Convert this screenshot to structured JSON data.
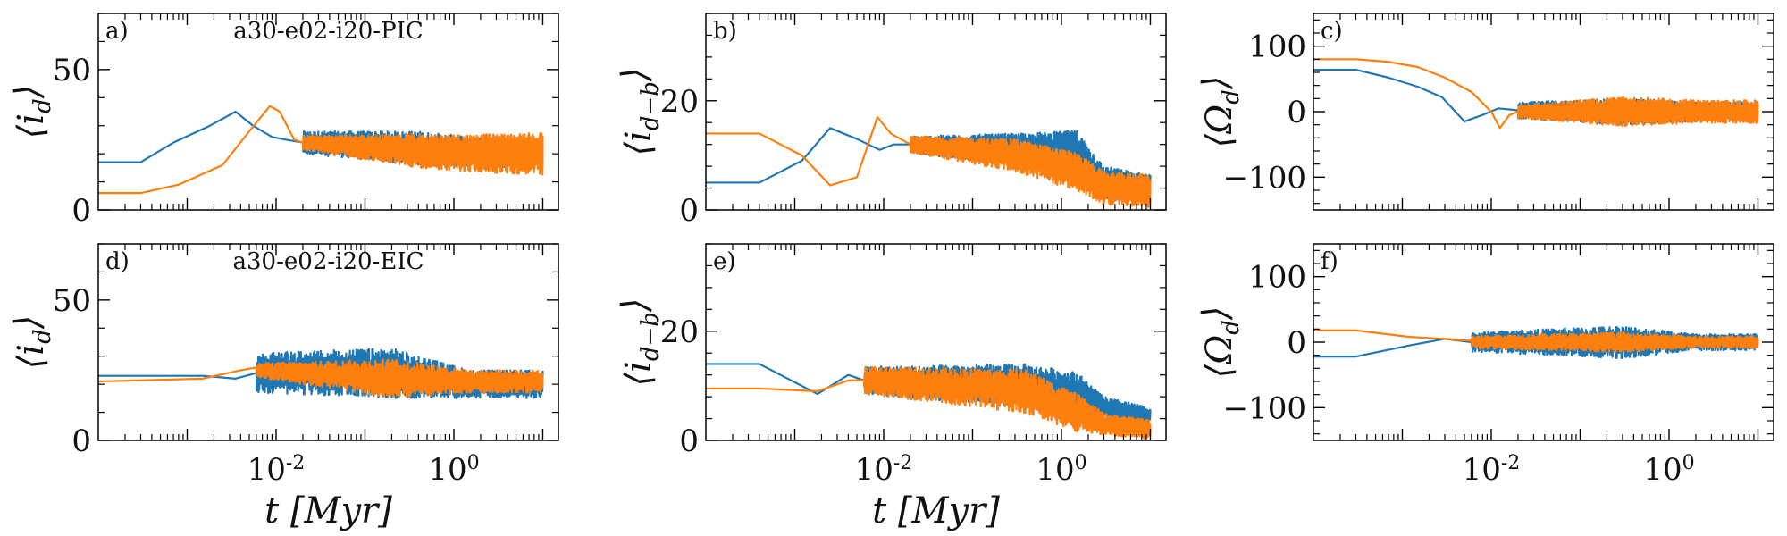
{
  "figure": {
    "background": "#ffffff",
    "series_colors": [
      "#1f77b4",
      "#ff7f0e"
    ]
  },
  "chart_data": [
    {
      "type": "line",
      "panel": "a)",
      "title": "a30-e02-i20-PIC",
      "ylabel": "⟨i_d⟩",
      "xlabel": "",
      "xscale": "log",
      "xlim": [
        0.0001,
        15
      ],
      "ylim": [
        0,
        70
      ],
      "yticks": [
        0,
        50
      ],
      "xticks": [
        0.01,
        1
      ],
      "show_xticklabels": false,
      "x_tick_labels": [
        "10^-2",
        "10^0"
      ],
      "noise_start": 0.02,
      "series": [
        {
          "name": "blue",
          "x": [
            0.0001,
            0.0003,
            0.0007,
            0.0018,
            0.0035,
            0.0055,
            0.009,
            0.013,
            0.02
          ],
          "y": [
            17,
            17,
            24,
            30,
            35,
            30,
            26,
            25,
            24
          ],
          "noise": [
            [
              0.02,
              24,
              8
            ],
            [
              0.4,
              22,
              12
            ],
            [
              3,
              20,
              10
            ],
            [
              10,
              20,
              10
            ]
          ]
        },
        {
          "name": "orange",
          "x": [
            0.0001,
            0.0003,
            0.0008,
            0.0025,
            0.005,
            0.0085,
            0.011,
            0.016,
            0.02
          ],
          "y": [
            6,
            6,
            9,
            16,
            28,
            37,
            35,
            25,
            24
          ],
          "noise": [
            [
              0.02,
              24,
              5
            ],
            [
              0.4,
              21,
              12
            ],
            [
              3,
              20,
              14
            ],
            [
              10,
              20,
              15
            ]
          ]
        }
      ]
    },
    {
      "type": "line",
      "panel": "b)",
      "title": "",
      "ylabel": "⟨i_{d−b}⟩",
      "xlabel": "",
      "xscale": "log",
      "xlim": [
        0.0001,
        15
      ],
      "ylim": [
        0,
        36
      ],
      "yticks": [
        0,
        20
      ],
      "xticks": [
        0.01,
        1
      ],
      "show_xticklabels": false,
      "x_tick_labels": [
        "10^-2",
        "10^0"
      ],
      "noise_start": 0.02,
      "series": [
        {
          "name": "blue",
          "x": [
            0.0001,
            0.0004,
            0.0012,
            0.0025,
            0.005,
            0.009,
            0.013,
            0.02
          ],
          "y": [
            5,
            5,
            9,
            15,
            13,
            11,
            12,
            12
          ],
          "noise": [
            [
              0.02,
              12,
              3
            ],
            [
              0.3,
              11,
              6
            ],
            [
              1.5,
              11,
              7
            ],
            [
              3,
              5,
              6
            ],
            [
              10,
              4,
              5
            ]
          ]
        },
        {
          "name": "orange",
          "x": [
            0.0001,
            0.0004,
            0.0012,
            0.0025,
            0.005,
            0.0085,
            0.012,
            0.02
          ],
          "y": [
            14,
            14,
            10,
            4.5,
            6,
            17,
            14,
            12
          ],
          "noise": [
            [
              0.02,
              12,
              3
            ],
            [
              0.3,
              10,
              6
            ],
            [
              1.5,
              7,
              7
            ],
            [
              3,
              4,
              6
            ],
            [
              10,
              3.5,
              6
            ]
          ]
        }
      ]
    },
    {
      "type": "line",
      "panel": "c)",
      "title": "",
      "ylabel": "⟨Ω_d⟩",
      "xlabel": "",
      "xscale": "log",
      "xlim": [
        0.0001,
        15
      ],
      "ylim": [
        -150,
        150
      ],
      "yticks": [
        -100,
        0,
        100
      ],
      "xticks": [
        0.01,
        1
      ],
      "show_xticklabels": false,
      "x_tick_labels": [
        "10^-2",
        "10^0"
      ],
      "noise_start": 0.02,
      "series": [
        {
          "name": "blue",
          "x": [
            0.0001,
            0.0003,
            0.0007,
            0.0015,
            0.0028,
            0.005,
            0.008,
            0.012,
            0.02
          ],
          "y": [
            64,
            64,
            52,
            38,
            22,
            -15,
            -5,
            5,
            2
          ],
          "noise": [
            [
              0.02,
              2,
              25
            ],
            [
              0.3,
              0,
              40
            ],
            [
              2,
              0,
              30
            ],
            [
              10,
              0,
              30
            ]
          ]
        },
        {
          "name": "orange",
          "x": [
            0.0001,
            0.0003,
            0.0007,
            0.0015,
            0.003,
            0.006,
            0.01,
            0.0125,
            0.016,
            0.02
          ],
          "y": [
            80,
            80,
            76,
            68,
            52,
            30,
            0,
            -25,
            -5,
            0
          ],
          "noise": [
            [
              0.02,
              0,
              20
            ],
            [
              0.3,
              0,
              45
            ],
            [
              2,
              0,
              35
            ],
            [
              10,
              0,
              35
            ]
          ]
        }
      ]
    },
    {
      "type": "line",
      "panel": "d)",
      "title": "a30-e02-i20-EIC",
      "ylabel": "⟨i_d⟩",
      "xlabel": "t [Myr]",
      "xscale": "log",
      "xlim": [
        0.0001,
        15
      ],
      "ylim": [
        0,
        70
      ],
      "yticks": [
        0,
        50
      ],
      "xticks": [
        0.01,
        1
      ],
      "show_xticklabels": true,
      "x_tick_labels": [
        "10^-2",
        "10^0"
      ],
      "noise_start": 0.006,
      "series": [
        {
          "name": "blue",
          "x": [
            0.0001,
            0.0015,
            0.0035,
            0.006
          ],
          "y": [
            23,
            23,
            22,
            24
          ],
          "noise": [
            [
              0.006,
              24,
              14
            ],
            [
              0.2,
              24,
              18
            ],
            [
              1.5,
              20,
              10
            ],
            [
              10,
              20,
              10
            ]
          ]
        },
        {
          "name": "orange",
          "x": [
            0.0001,
            0.0015,
            0.004,
            0.006
          ],
          "y": [
            21,
            22,
            25,
            26
          ],
          "noise": [
            [
              0.006,
              25,
              5
            ],
            [
              0.2,
              22,
              14
            ],
            [
              1.5,
              21,
              8
            ],
            [
              10,
              21,
              8
            ]
          ]
        }
      ]
    },
    {
      "type": "line",
      "panel": "e)",
      "title": "",
      "ylabel": "⟨i_{d−b}⟩",
      "xlabel": "t [Myr]",
      "xscale": "log",
      "xlim": [
        0.0001,
        15
      ],
      "ylim": [
        0,
        36
      ],
      "yticks": [
        0,
        20
      ],
      "xticks": [
        0.01,
        1
      ],
      "show_xticklabels": true,
      "x_tick_labels": [
        "10^-2",
        "10^0"
      ],
      "noise_start": 0.006,
      "series": [
        {
          "name": "blue",
          "x": [
            0.0001,
            0.0004,
            0.0018,
            0.004,
            0.006
          ],
          "y": [
            14,
            14,
            8.5,
            12,
            11
          ],
          "noise": [
            [
              0.006,
              11,
              5
            ],
            [
              0.4,
              10,
              8
            ],
            [
              1.5,
              9,
              7
            ],
            [
              3,
              6,
              4
            ],
            [
              10,
              4.5,
              3
            ]
          ]
        },
        {
          "name": "orange",
          "x": [
            0.0001,
            0.0004,
            0.0018,
            0.004,
            0.006
          ],
          "y": [
            9.5,
            9.5,
            9,
            11,
            11
          ],
          "noise": [
            [
              0.006,
              11,
              5
            ],
            [
              0.4,
              9,
              8
            ],
            [
              1.5,
              5,
              7
            ],
            [
              3,
              3,
              4
            ],
            [
              10,
              2,
              3.5
            ]
          ]
        }
      ]
    },
    {
      "type": "line",
      "panel": "f)",
      "title": "",
      "ylabel": "⟨Ω_d⟩",
      "xlabel": "",
      "xscale": "log",
      "xlim": [
        0.0001,
        15
      ],
      "ylim": [
        -150,
        150
      ],
      "yticks": [
        -100,
        0,
        100
      ],
      "xticks": [
        0.01,
        1
      ],
      "show_xticklabels": true,
      "x_tick_labels": [
        "10^-2",
        "10^0"
      ],
      "noise_start": 0.006,
      "series": [
        {
          "name": "blue",
          "x": [
            0.0001,
            0.0003,
            0.0012,
            0.003,
            0.006
          ],
          "y": [
            -22,
            -22,
            -5,
            5,
            0
          ],
          "noise": [
            [
              0.006,
              0,
              30
            ],
            [
              0.3,
              0,
              50
            ],
            [
              2,
              0,
              25
            ],
            [
              10,
              0,
              25
            ]
          ]
        },
        {
          "name": "orange",
          "x": [
            0.0001,
            0.0003,
            0.0012,
            0.003,
            0.006
          ],
          "y": [
            18,
            18,
            8,
            5,
            2
          ],
          "noise": [
            [
              0.006,
              0,
              20
            ],
            [
              0.3,
              0,
              30
            ],
            [
              2,
              0,
              18
            ],
            [
              10,
              0,
              18
            ]
          ]
        }
      ]
    }
  ]
}
